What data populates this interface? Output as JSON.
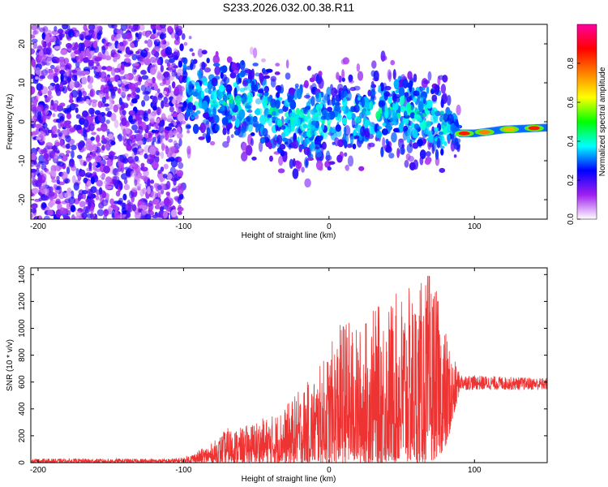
{
  "title": "S233.2026.032.00.38.R11",
  "chart_data": [
    {
      "type": "heatmap",
      "xlabel": "Height of straight line (km)",
      "ylabel": "Frequency (Hz)",
      "xlim": [
        -205,
        150
      ],
      "ylim": [
        -25,
        25
      ],
      "xticks": [
        -200,
        -100,
        0,
        100
      ],
      "yticks": [
        -20,
        -10,
        0,
        10,
        20
      ],
      "colorbar": {
        "label": "Normalized spectral amplitude",
        "range": [
          0,
          1
        ],
        "ticks": [
          "0.0",
          "0.2",
          "0.4",
          "0.6",
          "0.8"
        ],
        "colors": [
          "#ffffff",
          "#a020f0",
          "#0000ff",
          "#00ffff",
          "#00ff00",
          "#ffff00",
          "#ff8000",
          "#ff0000",
          "#ff00a0"
        ]
      },
      "ridge": {
        "x": [
          -100,
          -80,
          -60,
          -40,
          -20,
          0,
          20,
          40,
          60,
          80,
          90,
          100,
          120,
          150
        ],
        "freq": [
          8,
          6,
          5,
          3,
          0,
          0,
          2,
          3,
          2,
          0,
          -3,
          -3,
          -2,
          -1.5
        ]
      },
      "grid": false
    },
    {
      "type": "line",
      "xlabel": "Height of straight line (km)",
      "ylabel": "SNR (10 * v/v)",
      "xlim": [
        -205,
        150
      ],
      "ylim": [
        0,
        1450
      ],
      "xticks": [
        -200,
        -100,
        0,
        100
      ],
      "yticks": [
        0,
        200,
        400,
        600,
        800,
        1000,
        1200,
        1400
      ],
      "series": [
        {
          "color": "#ee3333",
          "envelope": {
            "x": [
              -205,
              -110,
              -100,
              -90,
              -80,
              -70,
              -60,
              -50,
              -40,
              -30,
              -20,
              -10,
              0,
              10,
              20,
              30,
              40,
              50,
              60,
              70,
              80,
              85,
              90,
              100,
              120,
              150
            ],
            "low": [
              0,
              0,
              0,
              0,
              0,
              0,
              0,
              0,
              0,
              0,
              0,
              0,
              0,
              0,
              0,
              0,
              0,
              0,
              0,
              0,
              100,
              300,
              540,
              540,
              540,
              540
            ],
            "high": [
              30,
              30,
              40,
              90,
              150,
              260,
              260,
              320,
              350,
              420,
              550,
              650,
              850,
              1100,
              1000,
              1150,
              1200,
              1300,
              1300,
              1450,
              1000,
              800,
              660,
              650,
              640,
              630
            ]
          }
        }
      ],
      "grid": false
    }
  ]
}
